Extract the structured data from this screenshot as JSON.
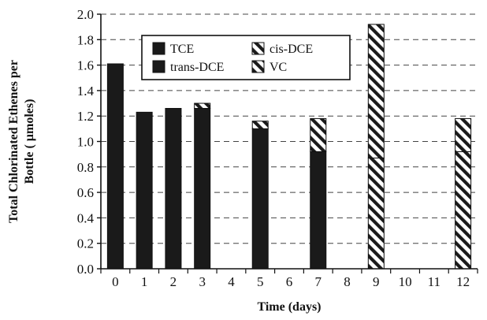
{
  "chart_data": {
    "type": "bar",
    "stacked": true,
    "title": "",
    "xlabel": "Time (days)",
    "ylabel": "Total Chlorinated Ethenes per Bottle ( µmoles)",
    "categories": [
      "0",
      "1",
      "2",
      "3",
      "4",
      "5",
      "6",
      "7",
      "8",
      "9",
      "10",
      "11",
      "12"
    ],
    "ylim": [
      0,
      2.0
    ],
    "yticks": [
      "0.0",
      "0.2",
      "0.4",
      "0.6",
      "0.8",
      "1.0",
      "1.2",
      "1.4",
      "1.6",
      "1.8",
      "2.0"
    ],
    "grid": true,
    "legend_position": "top-center",
    "series": [
      {
        "name": "TCE",
        "pattern": "solid",
        "color": "#1a1a1a",
        "values": [
          1.61,
          1.23,
          1.26,
          1.26,
          null,
          1.1,
          null,
          0.92,
          null,
          0.0,
          null,
          null,
          0.0
        ]
      },
      {
        "name": "trans-DCE",
        "pattern": "solid",
        "color": "#1a1a1a",
        "values": [
          0.0,
          0.0,
          0.0,
          0.0,
          null,
          0.0,
          null,
          0.0,
          null,
          0.0,
          null,
          null,
          0.0
        ]
      },
      {
        "name": "cis-DCE",
        "pattern": "hatch",
        "color": "#1a1a1a",
        "values": [
          0.0,
          0.0,
          0.0,
          0.04,
          null,
          0.06,
          null,
          0.26,
          null,
          0.87,
          null,
          null,
          0.92
        ]
      },
      {
        "name": "VC",
        "pattern": "hatch",
        "color": "#1a1a1a",
        "values": [
          0.0,
          0.0,
          0.0,
          0.0,
          null,
          0.0,
          null,
          0.0,
          null,
          1.05,
          null,
          null,
          0.26
        ]
      }
    ]
  }
}
